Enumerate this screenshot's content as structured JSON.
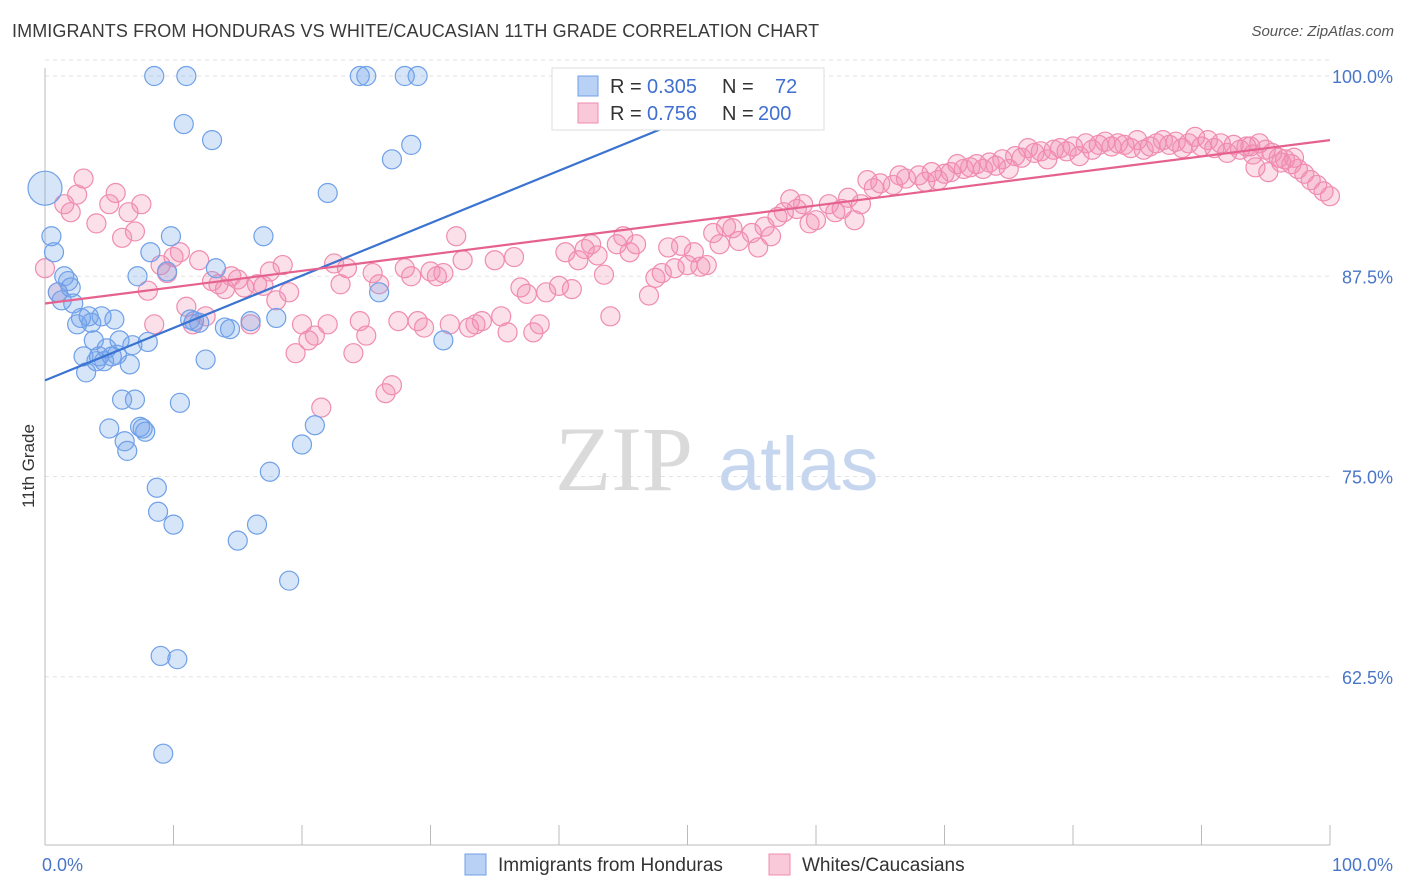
{
  "header": {
    "title": "IMMIGRANTS FROM HONDURAS VS WHITE/CAUCASIAN 11TH GRADE CORRELATION CHART",
    "source": "Source: ZipAtlas.com"
  },
  "watermark": {
    "zip": "ZIP",
    "atlas": "atlas"
  },
  "legend": {
    "rows": [
      {
        "r_label": "R =",
        "r_value": "0.305",
        "n_label": "N =",
        "n_value": "72",
        "color": "#6fa0e8"
      },
      {
        "r_label": "R =",
        "r_value": "0.756",
        "n_label": "N =",
        "n_value": "200",
        "color": "#f08cb0"
      }
    ]
  },
  "bottom_legend": [
    {
      "label": "Immigrants from Honduras",
      "color": "#6fa0e8"
    },
    {
      "label": "Whites/Caucasians",
      "color": "#f08cb0"
    }
  ],
  "chart_data": {
    "type": "scatter",
    "title": "IMMIGRANTS FROM HONDURAS VS WHITE/CAUCASIAN 11TH GRADE CORRELATION CHART",
    "xlabel": "",
    "ylabel": "11th Grade",
    "xlim": [
      0,
      100
    ],
    "ylim": [
      52,
      101
    ],
    "x_tick_labels": [
      "0.0%",
      "100.0%"
    ],
    "y_ticks": [
      62.5,
      75.0,
      87.5,
      100.0
    ],
    "y_tick_labels": [
      "62.5%",
      "75.0%",
      "87.5%",
      "100.0%"
    ],
    "grid": true,
    "legend_position": "top-center",
    "series": [
      {
        "name": "Immigrants from Honduras",
        "color": "#6fa0e8",
        "trend": {
          "x0": 0,
          "y0": 81.0,
          "x1": 55,
          "y1": 99.0
        },
        "points": [
          [
            0,
            93
          ],
          [
            0.5,
            90
          ],
          [
            0.7,
            89
          ],
          [
            1,
            86.5
          ],
          [
            1.3,
            86
          ],
          [
            1.5,
            87.5
          ],
          [
            1.8,
            87.2
          ],
          [
            2,
            86.8
          ],
          [
            2.2,
            85.8
          ],
          [
            2.5,
            84.5
          ],
          [
            2.8,
            84.9
          ],
          [
            3,
            82.5
          ],
          [
            3.2,
            81.5
          ],
          [
            3.4,
            85
          ],
          [
            3.6,
            84.6
          ],
          [
            3.8,
            83.5
          ],
          [
            4,
            82.2
          ],
          [
            4.2,
            82.5
          ],
          [
            4.4,
            85
          ],
          [
            4.6,
            82.2
          ],
          [
            4.8,
            83
          ],
          [
            5,
            78
          ],
          [
            5.2,
            82.5
          ],
          [
            5.4,
            84.8
          ],
          [
            5.6,
            82.6
          ],
          [
            5.8,
            83.5
          ],
          [
            6,
            79.8
          ],
          [
            6.2,
            77.2
          ],
          [
            6.4,
            76.6
          ],
          [
            6.6,
            82
          ],
          [
            6.8,
            83.2
          ],
          [
            7,
            79.8
          ],
          [
            7.2,
            87.5
          ],
          [
            7.4,
            78.1
          ],
          [
            7.6,
            78
          ],
          [
            7.8,
            77.8
          ],
          [
            8,
            83.4
          ],
          [
            8.2,
            89
          ],
          [
            8.5,
            100
          ],
          [
            8.7,
            74.3
          ],
          [
            8.8,
            72.8
          ],
          [
            9,
            63.8
          ],
          [
            9.2,
            57.7
          ],
          [
            9.5,
            87.8
          ],
          [
            9.8,
            90
          ],
          [
            10,
            72
          ],
          [
            10.3,
            63.6
          ],
          [
            10.5,
            79.6
          ],
          [
            10.8,
            97
          ],
          [
            11,
            100
          ],
          [
            11.3,
            84.8
          ],
          [
            11.6,
            84.7
          ],
          [
            12,
            84.6
          ],
          [
            12.5,
            82.3
          ],
          [
            13,
            96
          ],
          [
            13.3,
            88
          ],
          [
            14,
            84.3
          ],
          [
            14.4,
            84.2
          ],
          [
            15,
            71
          ],
          [
            16,
            84.7
          ],
          [
            16.5,
            72
          ],
          [
            17,
            90
          ],
          [
            17.5,
            75.3
          ],
          [
            18,
            84.9
          ],
          [
            19,
            68.5
          ],
          [
            20,
            77
          ],
          [
            21,
            78.2
          ],
          [
            22,
            92.7
          ],
          [
            24.5,
            100
          ],
          [
            25,
            100
          ],
          [
            26,
            86.5
          ],
          [
            27,
            94.8
          ],
          [
            28,
            100
          ],
          [
            28.5,
            95.7
          ],
          [
            29,
            100
          ],
          [
            31,
            83.5
          ]
        ]
      },
      {
        "name": "Whites/Caucasians",
        "color": "#f08cb0",
        "trend": {
          "x0": 0,
          "y0": 85.8,
          "x1": 100,
          "y1": 96.0
        },
        "points": [
          [
            0,
            88
          ],
          [
            1,
            86.5
          ],
          [
            1.5,
            92
          ],
          [
            2,
            91.5
          ],
          [
            2.5,
            92.6
          ],
          [
            3,
            93.6
          ],
          [
            4,
            90.8
          ],
          [
            5,
            92
          ],
          [
            5.5,
            92.7
          ],
          [
            6,
            89.9
          ],
          [
            6.5,
            91.5
          ],
          [
            7,
            90.3
          ],
          [
            7.5,
            92
          ],
          [
            8,
            86.6
          ],
          [
            8.5,
            84.5
          ],
          [
            9,
            88.2
          ],
          [
            9.5,
            87.7
          ],
          [
            10,
            88.7
          ],
          [
            10.5,
            89
          ],
          [
            11,
            85.6
          ],
          [
            11.5,
            84.5
          ],
          [
            12,
            88.5
          ],
          [
            12.5,
            85
          ],
          [
            13,
            87.2
          ],
          [
            13.5,
            87
          ],
          [
            14,
            86.7
          ],
          [
            14.5,
            87.5
          ],
          [
            15,
            87.3
          ],
          [
            15.5,
            86.8
          ],
          [
            16,
            84.5
          ],
          [
            16.5,
            87
          ],
          [
            17,
            86.9
          ],
          [
            17.5,
            87.8
          ],
          [
            18,
            86
          ],
          [
            18.5,
            88.2
          ],
          [
            19,
            86.5
          ],
          [
            19.5,
            82.7
          ],
          [
            20,
            84.5
          ],
          [
            20.5,
            83.5
          ],
          [
            21,
            83.8
          ],
          [
            21.5,
            79.3
          ],
          [
            22,
            84.5
          ],
          [
            22.5,
            88.3
          ],
          [
            23,
            87
          ],
          [
            23.5,
            88
          ],
          [
            24,
            82.7
          ],
          [
            24.5,
            84.7
          ],
          [
            25,
            83.8
          ],
          [
            25.5,
            87.7
          ],
          [
            26,
            87
          ],
          [
            26.5,
            80.2
          ],
          [
            27,
            80.7
          ],
          [
            27.5,
            84.7
          ],
          [
            28,
            88
          ],
          [
            28.5,
            87.5
          ],
          [
            29,
            84.7
          ],
          [
            29.5,
            84.3
          ],
          [
            30,
            87.8
          ],
          [
            30.5,
            87.5
          ],
          [
            31,
            87.7
          ],
          [
            31.5,
            84.5
          ],
          [
            32,
            90
          ],
          [
            32.5,
            88.5
          ],
          [
            33,
            84.3
          ],
          [
            33.5,
            84.5
          ],
          [
            34,
            84.7
          ],
          [
            35,
            88.5
          ],
          [
            35.5,
            85
          ],
          [
            36,
            84
          ],
          [
            36.5,
            88.7
          ],
          [
            37,
            86.8
          ],
          [
            37.5,
            86.4
          ],
          [
            38,
            84
          ],
          [
            38.5,
            84.5
          ],
          [
            39,
            86.5
          ],
          [
            40,
            86.9
          ],
          [
            40.5,
            89
          ],
          [
            41,
            86.7
          ],
          [
            41.5,
            88.5
          ],
          [
            42,
            89.2
          ],
          [
            42.5,
            89.5
          ],
          [
            43,
            88.8
          ],
          [
            43.5,
            87.6
          ],
          [
            44,
            85
          ],
          [
            44.5,
            89.5
          ],
          [
            45,
            90
          ],
          [
            45.5,
            89
          ],
          [
            46,
            89.5
          ],
          [
            47,
            86.3
          ],
          [
            47.5,
            87.4
          ],
          [
            48,
            87.7
          ],
          [
            48.5,
            89.3
          ],
          [
            49,
            88
          ],
          [
            49.5,
            89.4
          ],
          [
            50,
            88.2
          ],
          [
            50.5,
            89
          ],
          [
            51,
            88.1
          ],
          [
            51.5,
            88.2
          ],
          [
            52,
            90.2
          ],
          [
            52.5,
            89.5
          ],
          [
            53,
            90.6
          ],
          [
            53.5,
            90.5
          ],
          [
            54,
            89.7
          ],
          [
            55,
            90.2
          ],
          [
            55.5,
            89.3
          ],
          [
            56,
            90.6
          ],
          [
            56.5,
            90
          ],
          [
            57,
            91.2
          ],
          [
            57.5,
            91.5
          ],
          [
            58,
            92.3
          ],
          [
            58.5,
            91.7
          ],
          [
            59,
            92
          ],
          [
            59.5,
            90.8
          ],
          [
            60,
            91
          ],
          [
            61,
            92
          ],
          [
            61.5,
            91.5
          ],
          [
            62,
            91.7
          ],
          [
            62.5,
            92.4
          ],
          [
            63,
            91
          ],
          [
            63.5,
            92
          ],
          [
            64,
            93.5
          ],
          [
            64.5,
            93
          ],
          [
            65,
            93.3
          ],
          [
            66,
            93.2
          ],
          [
            66.5,
            93.8
          ],
          [
            67,
            93.6
          ],
          [
            68,
            93.8
          ],
          [
            68.5,
            93.4
          ],
          [
            69,
            94
          ],
          [
            69.5,
            93.5
          ],
          [
            70,
            93.9
          ],
          [
            70.5,
            94
          ],
          [
            71,
            94.5
          ],
          [
            71.5,
            94.2
          ],
          [
            72,
            94.3
          ],
          [
            72.5,
            94.5
          ],
          [
            73,
            94.2
          ],
          [
            73.5,
            94.6
          ],
          [
            74,
            94.4
          ],
          [
            74.5,
            94.8
          ],
          [
            75,
            94.2
          ],
          [
            75.5,
            95
          ],
          [
            76,
            94.9
          ],
          [
            76.5,
            95.5
          ],
          [
            77,
            95.2
          ],
          [
            77.5,
            95.3
          ],
          [
            78,
            94.8
          ],
          [
            78.5,
            95.4
          ],
          [
            79,
            95.5
          ],
          [
            79.5,
            95.3
          ],
          [
            80,
            95.6
          ],
          [
            80.5,
            95
          ],
          [
            81,
            95.8
          ],
          [
            81.5,
            95.4
          ],
          [
            82,
            95.7
          ],
          [
            82.5,
            95.9
          ],
          [
            83,
            95.6
          ],
          [
            83.5,
            95.8
          ],
          [
            84,
            95.7
          ],
          [
            84.5,
            95.5
          ],
          [
            85,
            96
          ],
          [
            85.5,
            95.4
          ],
          [
            86,
            95.6
          ],
          [
            86.5,
            95.8
          ],
          [
            87,
            96
          ],
          [
            87.5,
            95.7
          ],
          [
            88,
            95.9
          ],
          [
            88.5,
            95.5
          ],
          [
            89,
            95.8
          ],
          [
            89.5,
            96.2
          ],
          [
            90,
            95.6
          ],
          [
            90.5,
            96
          ],
          [
            91,
            95.5
          ],
          [
            91.5,
            95.8
          ],
          [
            92,
            95.2
          ],
          [
            92.5,
            95.7
          ],
          [
            93,
            95.4
          ],
          [
            93.5,
            95.6
          ],
          [
            94,
            95.1
          ],
          [
            94.5,
            95.8
          ],
          [
            95,
            95.4
          ],
          [
            95.5,
            95.2
          ],
          [
            96,
            94.9
          ],
          [
            96.5,
            94.8
          ],
          [
            97,
            94.5
          ],
          [
            97.5,
            94.2
          ],
          [
            98,
            93.9
          ],
          [
            98.5,
            93.5
          ],
          [
            99,
            93.2
          ],
          [
            99.5,
            92.8
          ],
          [
            100,
            92.5
          ],
          [
            93.8,
            95.6
          ],
          [
            94.2,
            94.3
          ],
          [
            95.2,
            94
          ],
          [
            96.2,
            94.6
          ],
          [
            97.2,
            94.9
          ]
        ]
      }
    ]
  }
}
